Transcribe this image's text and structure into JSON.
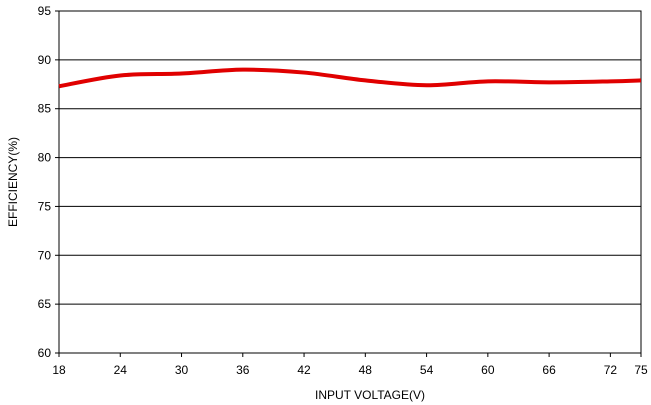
{
  "chart_data": {
    "type": "line",
    "xlabel": "INPUT VOLTAGE(V)",
    "ylabel": "EFFICIENCY(%)",
    "ylim": [
      60,
      95
    ],
    "y_ticks": [
      "60",
      "65",
      "70",
      "75",
      "80",
      "85",
      "90",
      "95"
    ],
    "x_tick_labels": [
      "18",
      "24",
      "30",
      "36",
      "42",
      "48",
      "54",
      "60",
      "66",
      "72",
      "75"
    ],
    "grid": "horizontal",
    "series": [
      {
        "color": "#e00000",
        "points": [
          {
            "x": "18",
            "y": 87.3
          },
          {
            "x": "24",
            "y": 88.4
          },
          {
            "x": "30",
            "y": 88.6
          },
          {
            "x": "36",
            "y": 89.0
          },
          {
            "x": "42",
            "y": 88.7
          },
          {
            "x": "48",
            "y": 87.9
          },
          {
            "x": "54",
            "y": 87.4
          },
          {
            "x": "60",
            "y": 87.8
          },
          {
            "x": "66",
            "y": 87.7
          },
          {
            "x": "72",
            "y": 87.8
          },
          {
            "x": "75",
            "y": 87.9
          }
        ]
      }
    ]
  }
}
